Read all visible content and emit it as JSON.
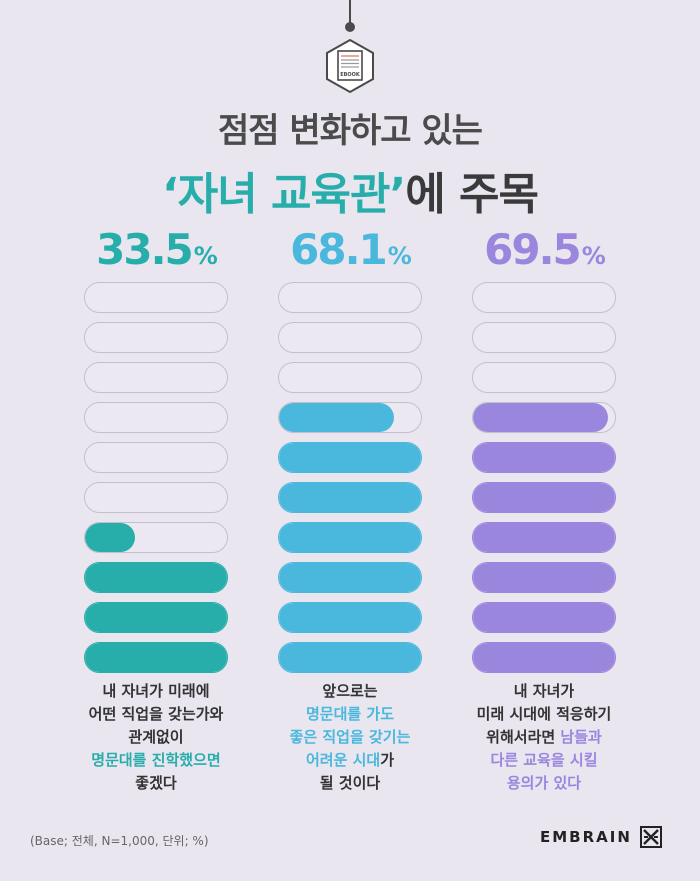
{
  "header": {
    "icon_label": "EBOOK",
    "title_line1": "점점 변화하고 있는",
    "title_line2_accent": "‘자녀 교육관’",
    "title_line2_rest": "에 주목"
  },
  "colors": {
    "col1": "#27aeab",
    "col2": "#4ab8dd",
    "col3": "#9b86de",
    "empty_pill": "#ebe8f1",
    "pill_border": "#c3c0cb",
    "background": "#e9e6f0"
  },
  "chart_data": {
    "type": "bar",
    "categories": [
      "내 자녀가 미래에 어떤 직업을 갖는가와 관계없이 명문대를 진학했으면 좋겠다",
      "앞으로는 명문대를 가도 좋은 직업을 갖기는 어려운 시대가 될 것이다",
      "내 자녀가 미래 시대에 적응하기 위해서라면 남들과 다른 교육을 시킬 용의가 있다"
    ],
    "values": [
      33.5,
      68.1,
      69.5
    ],
    "unit": "%",
    "ylim": [
      0,
      100
    ],
    "pills_per_column": 10
  },
  "columns": [
    {
      "value_text": "33.5",
      "unit": "%",
      "caption": [
        {
          "text": "내 자녀가 미래에"
        },
        {
          "text": "어떤 직업을 갖는가와"
        },
        {
          "text": "관계없이"
        },
        {
          "text": "명문대를 진학했으면",
          "hl": true
        },
        {
          "text": "좋겠다"
        }
      ]
    },
    {
      "value_text": "68.1",
      "unit": "%",
      "caption": [
        {
          "text": "앞으로는"
        },
        {
          "text": "명문대를 가도",
          "hl": true
        },
        {
          "text": "좋은 직업을 갖기는",
          "hl": true
        },
        {
          "parts": [
            {
              "text": "어려운 시대",
              "hl": true
            },
            {
              "text": "가"
            }
          ]
        },
        {
          "text": "될 것이다"
        }
      ]
    },
    {
      "value_text": "69.5",
      "unit": "%",
      "caption": [
        {
          "text": "내 자녀가"
        },
        {
          "text": "미래 시대에  적응하기"
        },
        {
          "parts": [
            {
              "text": "위해서라면 "
            },
            {
              "text": "남들과",
              "hl": true
            }
          ]
        },
        {
          "text": "다른 교육을 시킬",
          "hl": true
        },
        {
          "text": "용의가 있다",
          "hl": true
        }
      ]
    }
  ],
  "footer": {
    "base_note": "(Base; 전체, N=1,000, 단위; %)",
    "brand": "EMBRAIN"
  }
}
